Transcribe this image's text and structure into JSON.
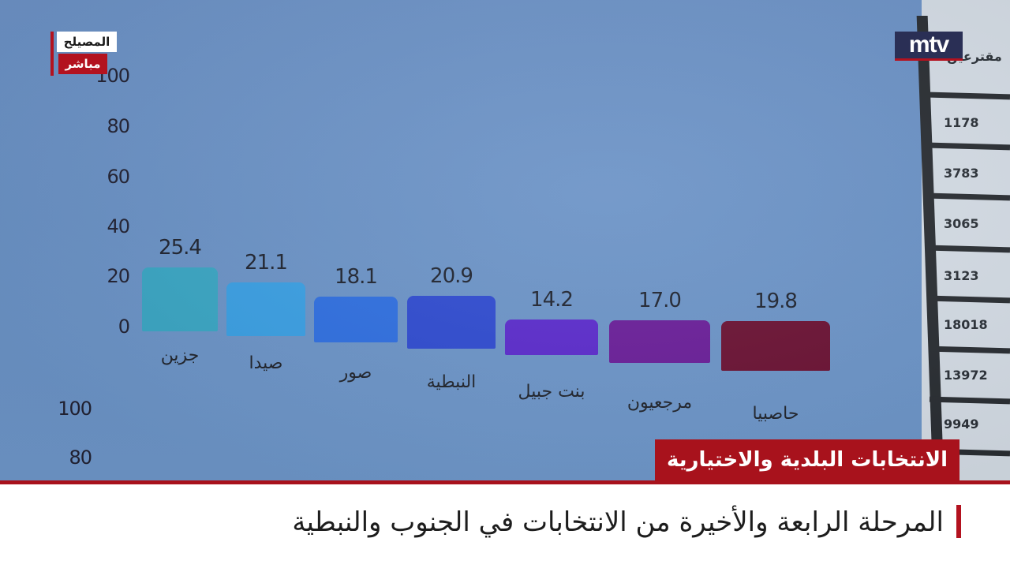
{
  "channel": {
    "logo_text": "mtv",
    "location": "المصيلح",
    "live": "مباشر"
  },
  "banner": {
    "tag": "الانتخابات البلدية والاختيارية",
    "headline": "المرحلة الرابعة والأخيرة من الانتخابات في الجنوب والنبطية"
  },
  "table": {
    "header": "مقترعين",
    "cells": [
      "1178",
      "3783",
      "3065",
      "3123",
      "18018",
      "13972",
      "9949"
    ]
  },
  "second_axis": {
    "ticks": [
      "100",
      "80"
    ]
  },
  "chart_data": {
    "type": "bar",
    "categories": [
      "جزين",
      "صيدا",
      "صور",
      "النبطية",
      "بنت جبيل",
      "مرجعيون",
      "حاصبيا"
    ],
    "values": [
      25.4,
      21.1,
      18.1,
      20.9,
      14.2,
      17.0,
      19.8
    ],
    "value_labels": [
      "25.4",
      "21.1",
      "18.1",
      "20.9",
      "14.2",
      "17.0",
      "19.8"
    ],
    "yticks": [
      "0",
      "20",
      "40",
      "60",
      "80",
      "100"
    ],
    "ylim": [
      0,
      100
    ],
    "colors": [
      "#3aa6c4",
      "#3a9fe3",
      "#2f6fe0",
      "#2f4bd0",
      "#5b2bcc",
      "#6a1e99",
      "#6b1234"
    ]
  }
}
